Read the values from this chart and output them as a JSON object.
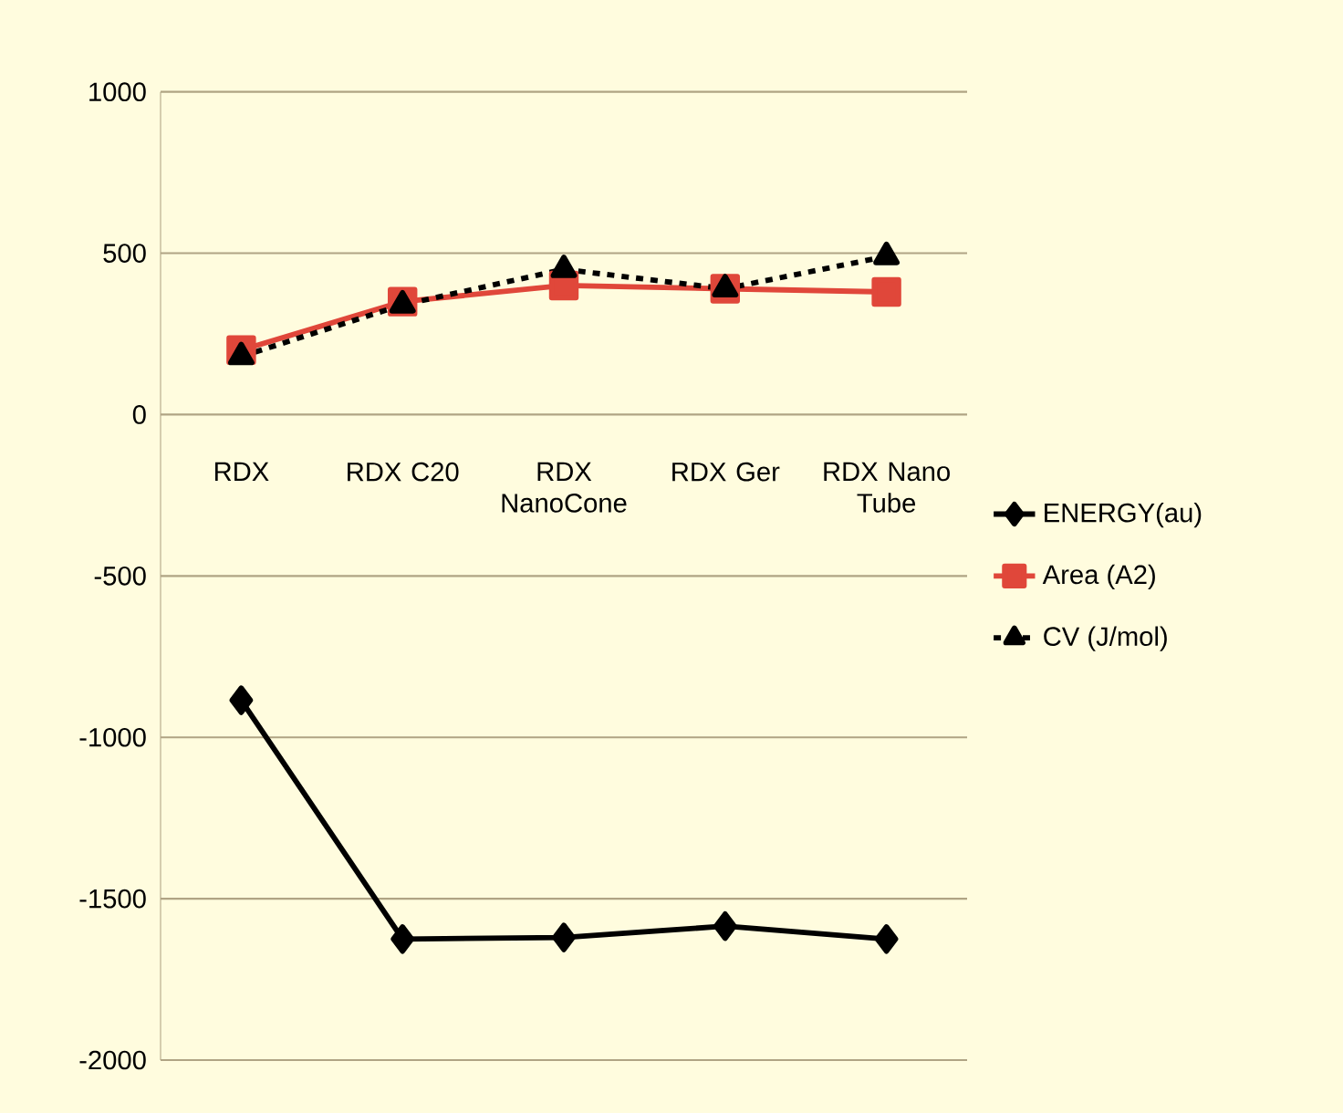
{
  "chart_data": {
    "type": "line",
    "categories": [
      "RDX",
      "RDX C20",
      "RDX NanoCone",
      "RDX Ger",
      "RDX Nano Tube"
    ],
    "ylim": [
      -2000,
      1000
    ],
    "yticks": [
      -2000,
      -1500,
      -1000,
      -500,
      0,
      500,
      1000
    ],
    "grid": "y",
    "legend": "right",
    "series": [
      {
        "name": "ENERGY(au)",
        "color": "#000000",
        "marker": "diamond",
        "line_style": "solid",
        "values": [
          -885,
          -1625,
          -1620,
          -1585,
          -1625
        ]
      },
      {
        "name": "Area (A2)",
        "color": "#e0473a",
        "marker": "square",
        "line_style": "solid",
        "values": [
          200,
          350,
          400,
          390,
          380
        ]
      },
      {
        "name": "CV (J/mol)",
        "color": "#000000",
        "marker": "triangle",
        "line_style": "dashed",
        "values": [
          180,
          340,
          450,
          390,
          490
        ]
      }
    ]
  }
}
